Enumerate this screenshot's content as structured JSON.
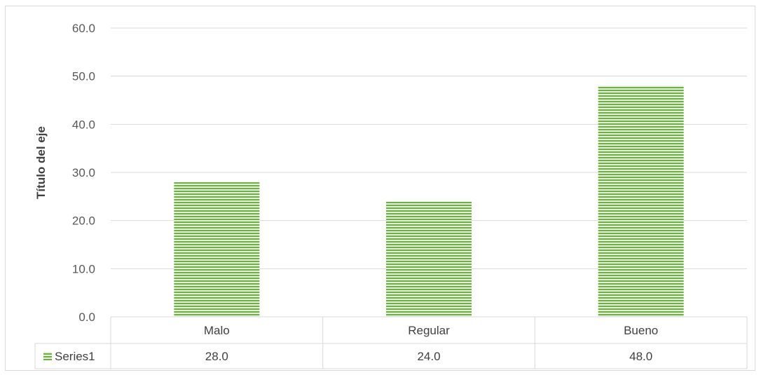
{
  "chart_data": {
    "type": "bar",
    "categories": [
      "Malo",
      "Regular",
      "Bueno"
    ],
    "series": [
      {
        "name": "Series1",
        "values": [
          28.0,
          24.0,
          48.0
        ]
      }
    ],
    "ylabel": "Título del eje",
    "ylim": [
      0,
      60
    ],
    "yticks": [
      "0.0",
      "10.0",
      "20.0",
      "30.0",
      "40.0",
      "50.0",
      "60.0"
    ],
    "data_table_values": [
      "28.0",
      "24.0",
      "48.0"
    ],
    "grid": true,
    "legend": "data-table",
    "colors": {
      "bar": "#70ad47",
      "bar_light": "#e2f0d9",
      "grid": "#d9d9d9",
      "text": "#595959"
    }
  }
}
